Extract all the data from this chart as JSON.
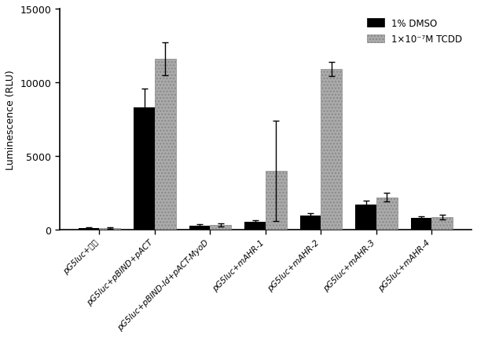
{
  "categories": [
    "pG5luc+空载",
    "pG5luc+pBIND+pACT",
    "pG5luc+pBIND-Id+pACT-MyoD",
    "pG5luc+mAHR-1",
    "pG5luc+mAHR-2",
    "pG5luc+mAHR-3",
    "pG5luc+mAHR-4"
  ],
  "dmso_values": [
    100,
    8300,
    280,
    550,
    950,
    1700,
    800
  ],
  "dmso_errors": [
    50,
    1300,
    80,
    80,
    150,
    250,
    120
  ],
  "tcdd_values": [
    120,
    11600,
    330,
    4000,
    10900,
    2200,
    850
  ],
  "tcdd_errors": [
    40,
    1100,
    90,
    3400,
    500,
    300,
    150
  ],
  "ylabel": "Luminescence (RLU)",
  "ylim": [
    0,
    15000
  ],
  "yticks": [
    0,
    5000,
    10000,
    15000
  ],
  "bar_width": 0.38,
  "dmso_color": "#000000",
  "tcdd_color": "#aaaaaa",
  "legend_dmso": "1% DMSO",
  "legend_tcdd": "1×10⁻⁷M TCDD",
  "figsize": [
    6.07,
    4.31
  ],
  "dpi": 100
}
